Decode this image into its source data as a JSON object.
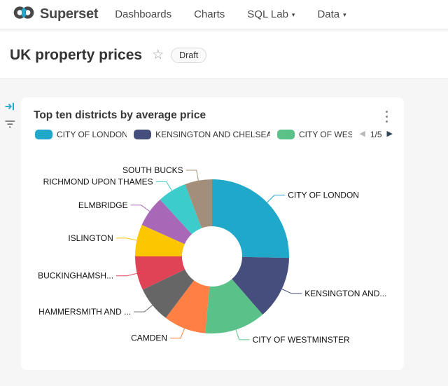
{
  "colors": {
    "brand": "#20A7C9",
    "page_bg": "#F6F6F6",
    "card_bg": "#FFFFFF",
    "pager_active": "#2F4554",
    "pager_disabled": "#B9B9B9"
  },
  "nav": {
    "brand": "Superset",
    "items": [
      {
        "label": "Dashboards"
      },
      {
        "label": "Charts"
      },
      {
        "label": "SQL Lab"
      },
      {
        "label": "Data"
      }
    ],
    "caret": "▾"
  },
  "dashboard": {
    "title": "UK property prices",
    "favorite_star": "☆",
    "status_badge": "Draft"
  },
  "chart": {
    "title": "Top ten districts by average price",
    "legend": {
      "visible_items": [
        {
          "label": "CITY OF LONDON",
          "color": "#1FA8C9"
        },
        {
          "label": "KENSINGTON AND CHELSEA",
          "color": "#454E7C"
        },
        {
          "label": "CITY OF WES",
          "color": "#5AC189"
        }
      ],
      "page_indicator": "1/5",
      "prev_arrow": "◀",
      "next_arrow": "▶"
    }
  },
  "chart_data": {
    "type": "pie",
    "subtype": "donut",
    "title": "Top ten districts by average price",
    "legend_position": "top",
    "labels_outside": true,
    "slices": [
      {
        "name": "CITY OF LONDON",
        "label": "CITY OF LONDON",
        "percent": 25.3,
        "color": "#1FA8C9"
      },
      {
        "name": "KENSINGTON AND CHELSEA",
        "label": "KENSINGTON AND...",
        "percent": 13.3,
        "color": "#454E7C"
      },
      {
        "name": "CITY OF WESTMINSTER",
        "label": "CITY OF WESTMINSTER",
        "percent": 12.8,
        "color": "#5AC189"
      },
      {
        "name": "CAMDEN",
        "label": "CAMDEN",
        "percent": 8.9,
        "color": "#FF7F44"
      },
      {
        "name": "HAMMERSMITH AND FULHAM",
        "label": "HAMMERSMITH AND ...",
        "percent": 7.6,
        "color": "#666666"
      },
      {
        "name": "BUCKINGHAMSHIRE",
        "label": "BUCKINGHAMSH...",
        "percent": 7.1,
        "color": "#E04355"
      },
      {
        "name": "ISLINGTON",
        "label": "ISLINGTON",
        "percent": 6.7,
        "color": "#FCC700"
      },
      {
        "name": "ELMBRIDGE",
        "label": "ELMBRIDGE",
        "percent": 6.5,
        "color": "#A868B7"
      },
      {
        "name": "RICHMOND UPON THAMES",
        "label": "RICHMOND UPON THAMES",
        "percent": 6.1,
        "color": "#3CCCCB"
      },
      {
        "name": "SOUTH BUCKS",
        "label": "SOUTH BUCKS",
        "percent": 5.7,
        "color": "#A38F79"
      }
    ]
  }
}
